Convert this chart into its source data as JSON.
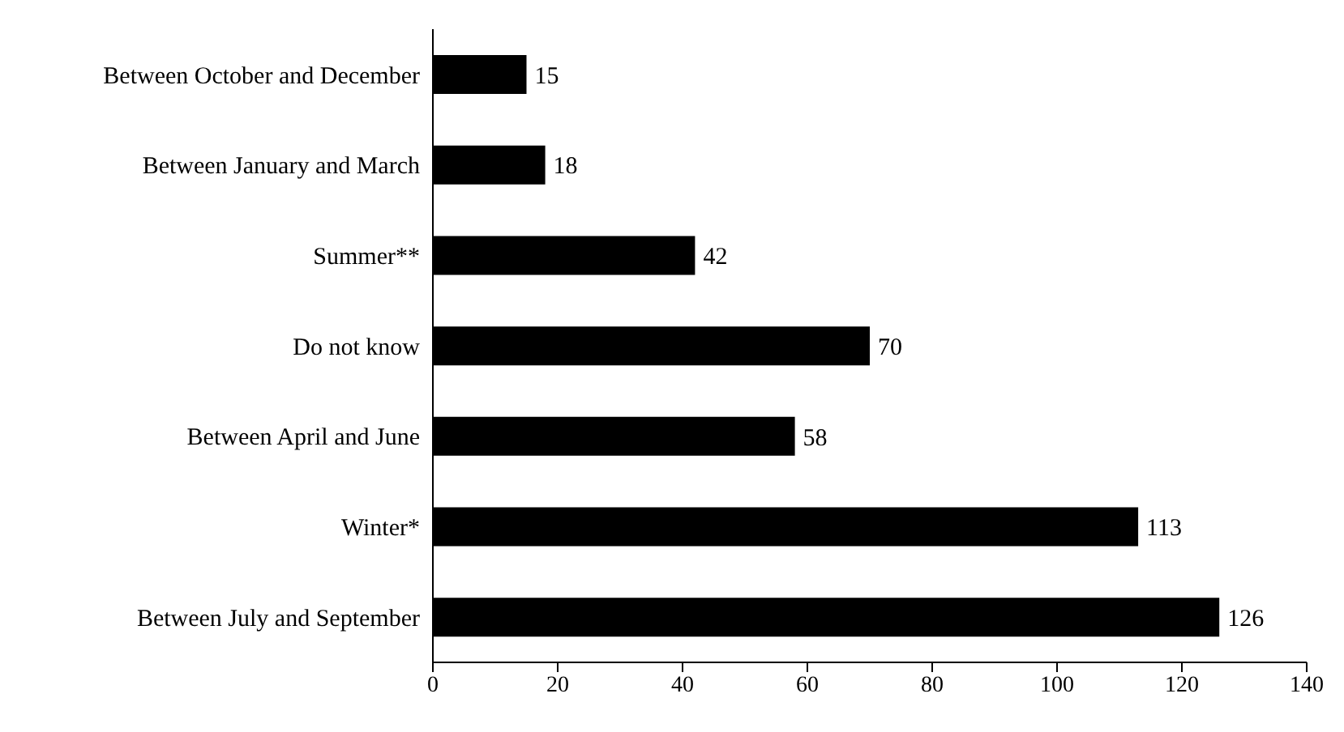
{
  "chart_data": {
    "type": "bar",
    "orientation": "horizontal",
    "categories": [
      "Between October and December",
      "Between January and March",
      "Summer**",
      "Do not know",
      "Between April and June",
      "Winter*",
      "Between July and September"
    ],
    "values": [
      15,
      18,
      42,
      70,
      58,
      113,
      126
    ],
    "color": "#000000",
    "xlim": [
      0,
      140
    ],
    "xticks": [
      0,
      20,
      40,
      60,
      80,
      100,
      120,
      140
    ],
    "data_labels": true,
    "grid": false,
    "legend": false
  }
}
